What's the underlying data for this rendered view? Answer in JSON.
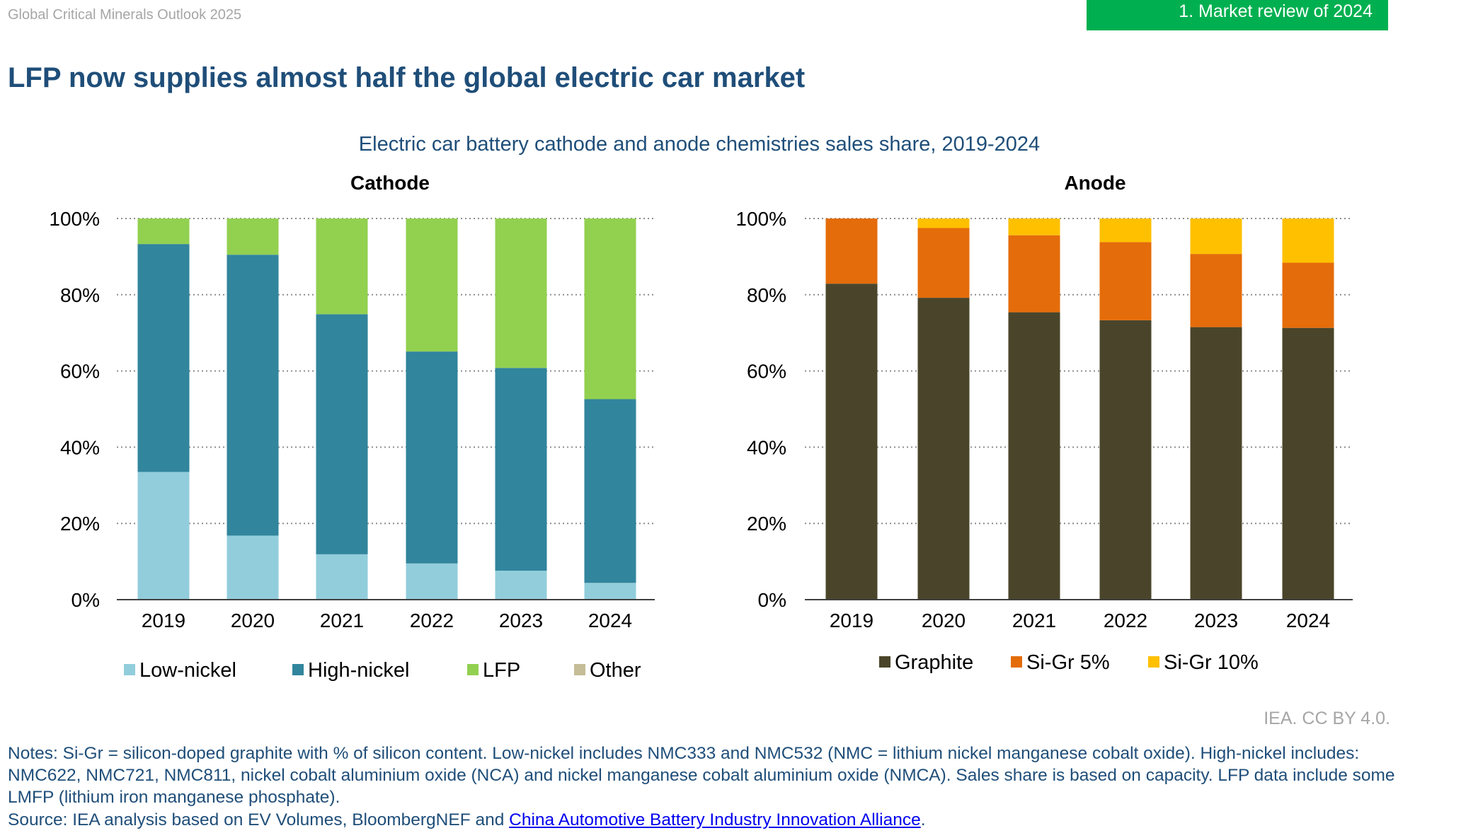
{
  "header": {
    "report_name": "Global Critical Minerals Outlook 2025",
    "section_tab": "1. Market review of 2024"
  },
  "title": "LFP now supplies almost half the global electric car market",
  "chart_title": "Electric car battery cathode and anode chemistries sales share, 2019-2024",
  "chart_data": [
    {
      "type": "bar",
      "stacked": true,
      "title": "Cathode",
      "categories": [
        "2019",
        "2020",
        "2021",
        "2022",
        "2023",
        "2024"
      ],
      "yticks": [
        "0%",
        "20%",
        "40%",
        "60%",
        "80%",
        "100%"
      ],
      "ylim": [
        0,
        100
      ],
      "grid": true,
      "legend_position": "bottom",
      "series": [
        {
          "name": "Low-nickel",
          "color": "#92cddc",
          "values": [
            33.5,
            16.8,
            11.9,
            9.5,
            7.6,
            4.4
          ]
        },
        {
          "name": "High-nickel",
          "color": "#31859c",
          "values": [
            59.8,
            73.7,
            63.0,
            55.6,
            53.2,
            48.2
          ]
        },
        {
          "name": "LFP",
          "color": "#92d050",
          "values": [
            6.7,
            9.5,
            25.1,
            34.9,
            39.2,
            47.4
          ]
        },
        {
          "name": "Other",
          "color": "#c4bd97",
          "values": [
            0,
            0,
            0,
            0,
            0,
            0
          ]
        }
      ]
    },
    {
      "type": "bar",
      "stacked": true,
      "title": "Anode",
      "categories": [
        "2019",
        "2020",
        "2021",
        "2022",
        "2023",
        "2024"
      ],
      "yticks": [
        "0%",
        "20%",
        "40%",
        "60%",
        "80%",
        "100%"
      ],
      "ylim": [
        0,
        100
      ],
      "grid": true,
      "legend_position": "bottom",
      "series": [
        {
          "name": "Graphite",
          "color": "#4a452a",
          "values": [
            82.9,
            79.2,
            75.4,
            73.3,
            71.5,
            71.3
          ]
        },
        {
          "name": "Si-Gr 5%",
          "color": "#e46c0a",
          "values": [
            17.1,
            18.3,
            20.2,
            20.5,
            19.2,
            17.1
          ]
        },
        {
          "name": "Si-Gr 10%",
          "color": "#ffc000",
          "values": [
            0,
            2.5,
            4.4,
            6.2,
            9.3,
            11.6
          ]
        }
      ]
    }
  ],
  "credit": "IEA. CC BY 4.0.",
  "notes": "Notes: Si-Gr = silicon-doped graphite with % of silicon content. Low-nickel includes NMC333 and NMC532 (NMC = lithium nickel manganese cobalt oxide). High-nickel includes: NMC622, NMC721, NMC811, nickel cobalt aluminium oxide (NCA) and nickel manganese cobalt aluminium oxide (NMCA). Sales share is based on capacity. LFP data include some LMFP (lithium iron manganese phosphate).",
  "source": {
    "prefix": "Source: IEA analysis based on EV Volumes, BloombergNEF and ",
    "link": "China Automotive Battery Industry Innovation Alliance",
    "suffix": "."
  }
}
